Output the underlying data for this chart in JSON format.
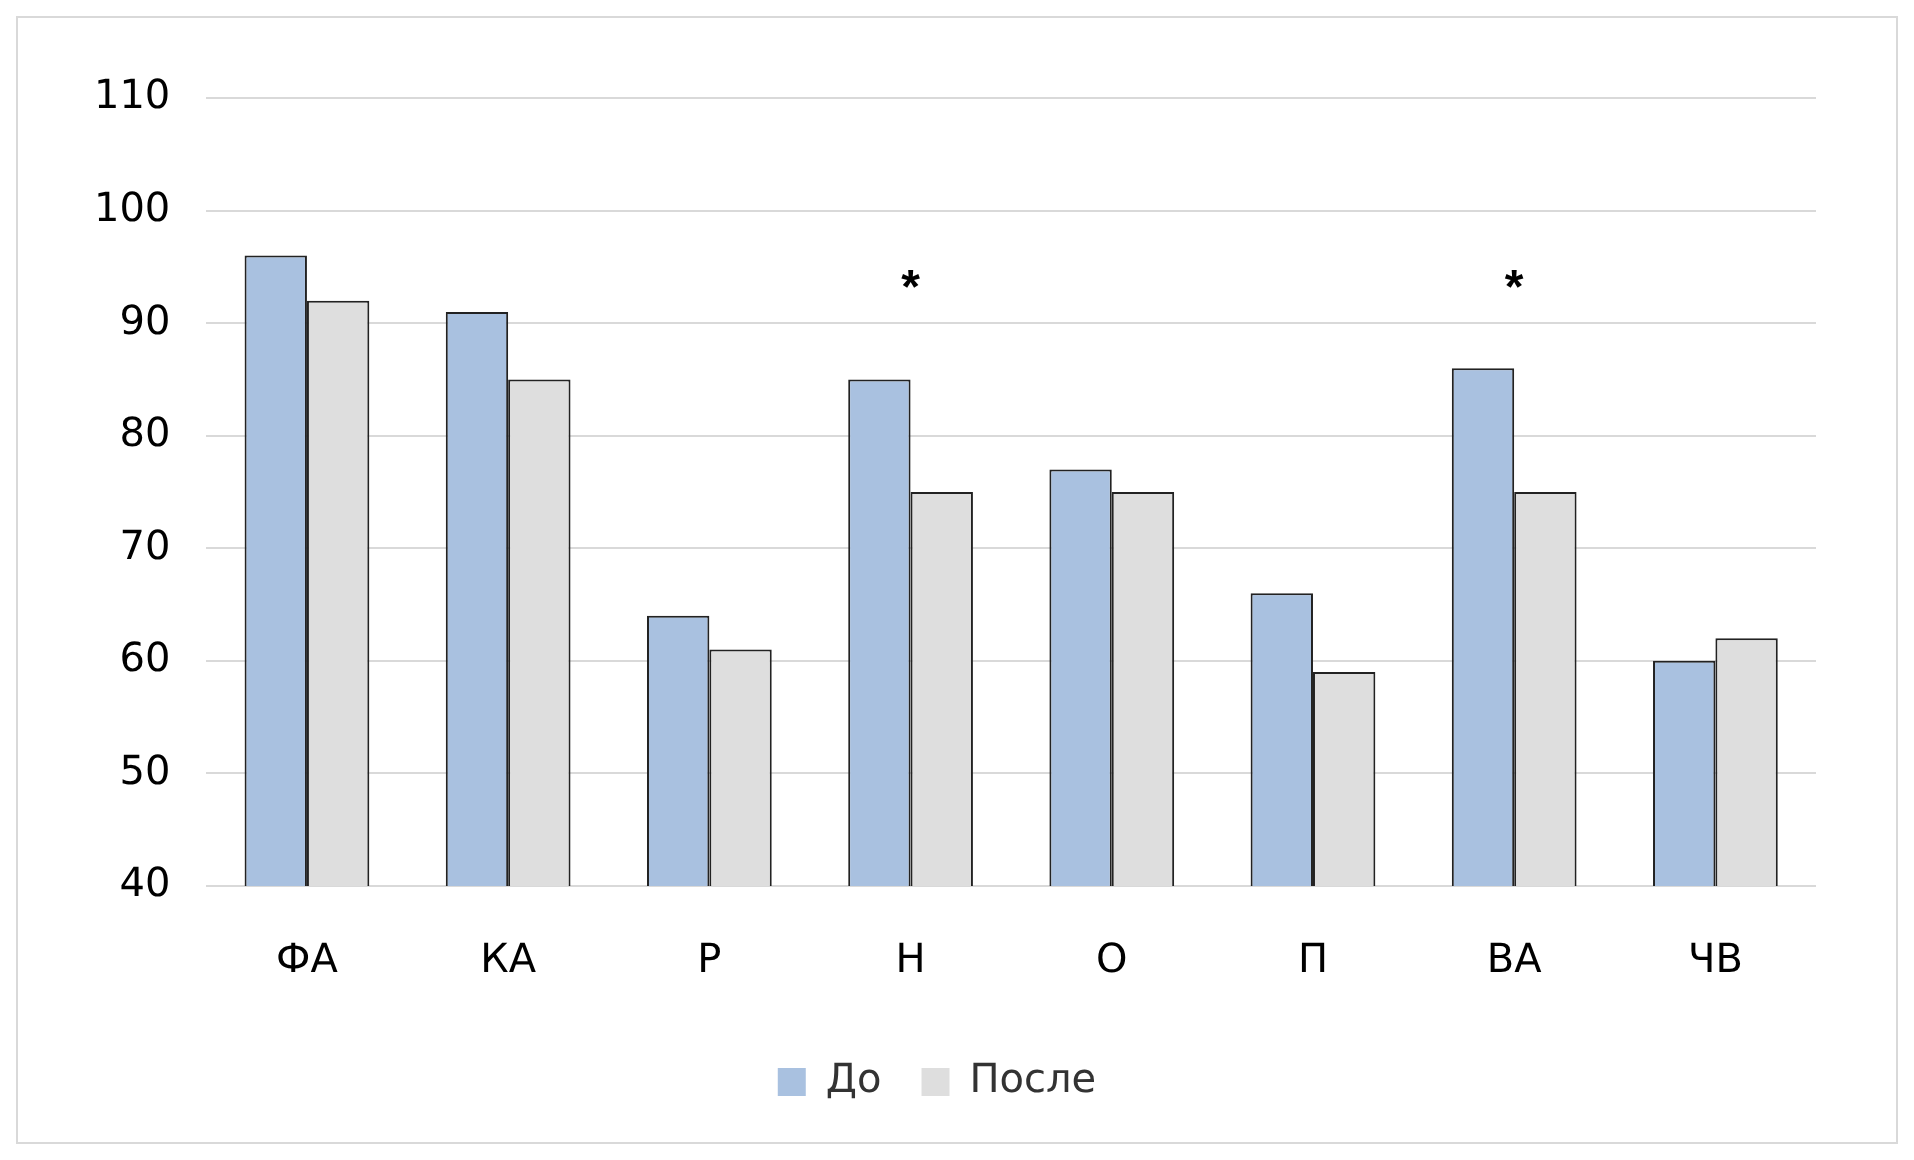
{
  "chart_data": {
    "type": "bar",
    "categories": [
      "ФА",
      "КА",
      "Р",
      "Н",
      "О",
      "П",
      "ВА",
      "ЧВ"
    ],
    "series": [
      {
        "name": "До",
        "color": "#a9c1e0",
        "values": [
          96,
          91,
          64,
          85,
          77,
          66,
          86,
          60
        ]
      },
      {
        "name": "После",
        "color": "#dedede",
        "values": [
          92,
          85,
          61,
          75,
          75,
          59,
          75,
          62
        ]
      }
    ],
    "ylim": [
      40,
      110
    ],
    "yticks": [
      40,
      50,
      60,
      70,
      80,
      90,
      100,
      110
    ],
    "grid": "y",
    "legend": "bottom",
    "annotations": [
      "*",
      "*"
    ]
  }
}
